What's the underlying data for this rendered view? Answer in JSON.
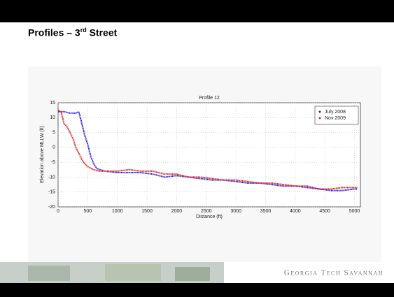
{
  "slide": {
    "title_parts": [
      "Profiles – 3",
      "rd",
      " Street"
    ],
    "footer": "Georgia Tech Savannah"
  },
  "chart_data": {
    "type": "line",
    "title": "Profile 12",
    "x_label": "Distance (ft)",
    "y_label": "Elevation above MLLW (ft)",
    "xlim": [
      0,
      5100
    ],
    "xticks": [
      0,
      500,
      1000,
      1500,
      2000,
      2500,
      3000,
      3500,
      4000,
      4500,
      5000
    ],
    "ylim": [
      -20,
      15
    ],
    "yticks": [
      -20,
      -15,
      -10,
      -5,
      0,
      5,
      10,
      15
    ],
    "grid": true,
    "legend": "top-right",
    "series": [
      {
        "name": "July 2008",
        "color": "#2020e0",
        "x": [
          0,
          100,
          200,
          300,
          350,
          400,
          450,
          500,
          550,
          600,
          650,
          700,
          800,
          1000,
          1200,
          1400,
          1600,
          1800,
          2000,
          2200,
          2400,
          2600,
          2800,
          3000,
          3200,
          3400,
          3600,
          3800,
          4000,
          4200,
          4400,
          4600,
          4800,
          5000,
          5050
        ],
        "values": [
          12,
          12,
          11.5,
          11.5,
          12,
          8,
          4,
          1,
          -3,
          -5.5,
          -7,
          -7.5,
          -8,
          -8.5,
          -8.5,
          -8.5,
          -9,
          -10,
          -9.5,
          -10,
          -10.5,
          -11,
          -11,
          -11.5,
          -12,
          -12,
          -12.5,
          -13,
          -13,
          -13.5,
          -14,
          -14.5,
          -14.5,
          -14,
          -14
        ]
      },
      {
        "name": "Nov 2009",
        "color": "#e02020",
        "x": [
          0,
          50,
          100,
          150,
          200,
          250,
          300,
          350,
          400,
          450,
          500,
          600,
          700,
          800,
          1000,
          1200,
          1400,
          1600,
          1800,
          2000,
          2200,
          2400,
          2600,
          2800,
          3000,
          3200,
          3400,
          3600,
          3800,
          4000,
          4200,
          4400,
          4600,
          4800,
          5000,
          5050
        ],
        "values": [
          12.5,
          12,
          8,
          7,
          5,
          3,
          0,
          -2,
          -4,
          -5.5,
          -6.5,
          -7.5,
          -8,
          -8,
          -8,
          -7.5,
          -8,
          -8,
          -9,
          -9,
          -10,
          -10,
          -10.5,
          -11,
          -11,
          -11.5,
          -12,
          -12,
          -12.5,
          -13,
          -13,
          -14,
          -14,
          -13.5,
          -13.5,
          -13.5
        ]
      }
    ]
  }
}
